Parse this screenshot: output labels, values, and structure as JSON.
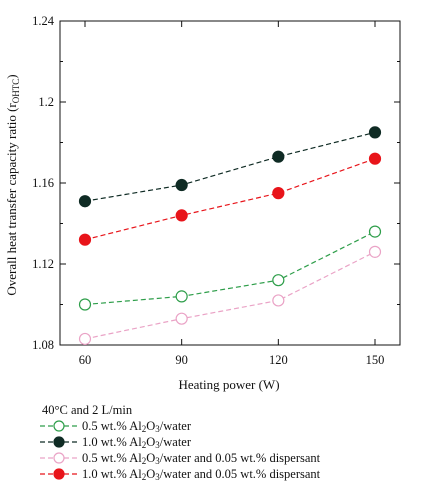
{
  "chart_data": {
    "type": "line",
    "xlabel": "Heating power (W)",
    "ylabel": "Overall heat transfer capacity ratio (r",
    "ylabel_sub": "OHTC",
    "ylabel_close": ")",
    "x": [
      60,
      90,
      120,
      150
    ],
    "xlim": [
      60,
      150
    ],
    "ylim": [
      1.08,
      1.24
    ],
    "xticks": [
      "60",
      "90",
      "120",
      "150"
    ],
    "yticks": [
      "1.08",
      "1.12",
      "1.16",
      "1.2",
      "1.24"
    ],
    "grid": false,
    "legend_title": "40°C and 2 L/min",
    "series": [
      {
        "name": "0.5 wt.% Al2O3/water",
        "values": [
          1.1,
          1.104,
          1.112,
          1.136
        ],
        "color": "#2e9e4a",
        "filled": false
      },
      {
        "name": "1.0 wt.% Al2O3/water",
        "values": [
          1.151,
          1.159,
          1.173,
          1.185
        ],
        "color": "#0f2b24",
        "filled": true
      },
      {
        "name": "0.5 wt.% Al2O3/water and 0.05 wt.% dispersant",
        "values": [
          1.083,
          1.093,
          1.102,
          1.126
        ],
        "color": "#eaa3c6",
        "filled": false
      },
      {
        "name": "1.0 wt.% Al2O3/water and 0.05 wt.% dispersant",
        "values": [
          1.132,
          1.144,
          1.155,
          1.172
        ],
        "color": "#e8141a",
        "filled": true
      }
    ]
  }
}
